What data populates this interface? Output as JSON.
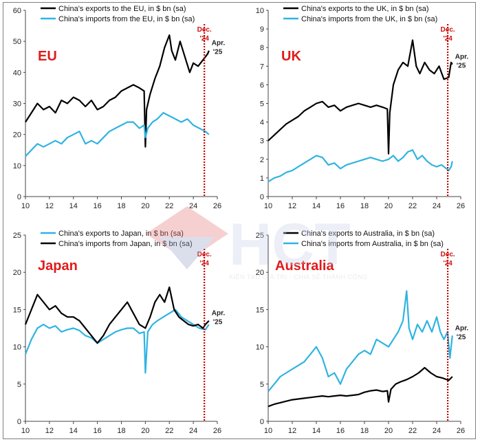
{
  "watermark": {
    "logo": "HCT",
    "slogan": "KIẾN TẠO GIÁ TRỊ - CHIA SẺ THÀNH CÔNG"
  },
  "colors": {
    "black_series": "#000000",
    "blue_series": "#2fb3e2",
    "region_label": "#e01b1b",
    "dec_line": "#c00000"
  },
  "chart_data": [
    {
      "type": "line",
      "region_label": "EU",
      "xlim": [
        10,
        26
      ],
      "ylim": [
        0,
        60
      ],
      "xticks": [
        "10",
        "12",
        "14",
        "16",
        "18",
        "20",
        "22",
        "24",
        "26"
      ],
      "yticks": [
        "0",
        "10",
        "20",
        "30",
        "40",
        "50",
        "60"
      ],
      "marker_dec": "Dec.",
      "marker_dec_year": "'24",
      "marker_apr": "Apr.",
      "marker_apr_year": "'25",
      "marker_x": 24.92,
      "series": [
        {
          "name": "China's exports to the EU, in $ bn (sa)",
          "color": "#000000",
          "x": [
            10,
            10.5,
            11,
            11.5,
            12,
            12.5,
            13,
            13.5,
            14,
            14.5,
            15,
            15.5,
            16,
            16.5,
            17,
            17.5,
            18,
            18.5,
            19,
            19.5,
            19.9,
            20.0,
            20.1,
            20.4,
            20.8,
            21.2,
            21.6,
            22.0,
            22.2,
            22.5,
            22.9,
            23.3,
            23.7,
            24.0,
            24.4,
            24.8,
            25.0,
            25.2,
            25.3
          ],
          "y": [
            24,
            27,
            30,
            28,
            29,
            27,
            31,
            30,
            32,
            31,
            29,
            31,
            28,
            29,
            31,
            32,
            34,
            35,
            36,
            35,
            34,
            16,
            28,
            33,
            38,
            42,
            48,
            52,
            47,
            44,
            50,
            45,
            40,
            43,
            42,
            44,
            45,
            46,
            47
          ]
        },
        {
          "name": "China's imports from the EU, in $ bn (sa)",
          "color": "#2fb3e2",
          "x": [
            10,
            10.5,
            11,
            11.5,
            12,
            12.5,
            13,
            13.5,
            14,
            14.5,
            15,
            15.5,
            16,
            16.5,
            17,
            17.5,
            18,
            18.5,
            19,
            19.5,
            19.9,
            20.0,
            20.2,
            20.6,
            21.0,
            21.5,
            22.0,
            22.5,
            23.0,
            23.5,
            24.0,
            24.5,
            25.0,
            25.3
          ],
          "y": [
            13,
            15,
            17,
            16,
            17,
            18,
            17,
            19,
            20,
            21,
            17,
            18,
            17,
            19,
            21,
            22,
            23,
            24,
            24,
            22,
            23,
            19,
            22,
            24,
            25,
            27,
            26,
            25,
            24,
            25,
            23,
            22,
            21,
            20
          ]
        }
      ]
    },
    {
      "type": "line",
      "region_label": "UK",
      "xlim": [
        10,
        26
      ],
      "ylim": [
        0,
        10
      ],
      "xticks": [
        "10",
        "12",
        "14",
        "16",
        "18",
        "20",
        "22",
        "24",
        "26"
      ],
      "yticks": [
        "0",
        "1",
        "2",
        "3",
        "4",
        "5",
        "6",
        "7",
        "8",
        "9",
        "10"
      ],
      "marker_dec": "Dec.",
      "marker_dec_year": "'24",
      "marker_apr": "Apr.",
      "marker_apr_year": "'25",
      "marker_x": 24.92,
      "series": [
        {
          "name": "China's exports to the UK, in $ bn (sa)",
          "color": "#000000",
          "x": [
            10,
            10.5,
            11,
            11.5,
            12,
            12.5,
            13,
            13.5,
            14,
            14.5,
            15,
            15.5,
            16,
            16.5,
            17,
            17.5,
            18,
            18.5,
            19,
            19.5,
            19.9,
            20.0,
            20.1,
            20.4,
            20.8,
            21.2,
            21.6,
            22.0,
            22.3,
            22.6,
            23.0,
            23.4,
            23.8,
            24.2,
            24.6,
            25.0,
            25.2,
            25.3
          ],
          "y": [
            3.0,
            3.3,
            3.6,
            3.9,
            4.1,
            4.3,
            4.6,
            4.8,
            5.0,
            5.1,
            4.8,
            4.9,
            4.6,
            4.8,
            4.9,
            5.0,
            4.9,
            4.8,
            4.9,
            4.8,
            4.7,
            2.3,
            4.5,
            6.0,
            6.8,
            7.2,
            7.0,
            8.4,
            7.0,
            6.6,
            7.2,
            6.8,
            6.6,
            7.0,
            6.3,
            6.4,
            7.2,
            7.1
          ]
        },
        {
          "name": "China's imports from the UK, in $ bn (sa)",
          "color": "#2fb3e2",
          "x": [
            10,
            10.5,
            11,
            11.5,
            12,
            12.5,
            13,
            13.5,
            14,
            14.5,
            15,
            15.5,
            16,
            16.5,
            17,
            17.5,
            18,
            18.5,
            19,
            19.5,
            20.0,
            20.4,
            20.8,
            21.2,
            21.6,
            22.0,
            22.4,
            22.8,
            23.2,
            23.6,
            24.0,
            24.4,
            24.8,
            25.0,
            25.2,
            25.3
          ],
          "y": [
            0.8,
            1.0,
            1.1,
            1.3,
            1.4,
            1.6,
            1.8,
            2.0,
            2.2,
            2.1,
            1.7,
            1.8,
            1.5,
            1.7,
            1.8,
            1.9,
            2.0,
            2.1,
            2.0,
            1.9,
            2.0,
            2.2,
            1.9,
            2.1,
            2.4,
            2.5,
            2.0,
            2.2,
            1.9,
            1.7,
            1.6,
            1.7,
            1.5,
            1.4,
            1.6,
            1.9
          ]
        }
      ]
    },
    {
      "type": "line",
      "region_label": "Japan",
      "xlim": [
        10,
        26
      ],
      "ylim": [
        0,
        25
      ],
      "xticks": [
        "10",
        "12",
        "14",
        "16",
        "18",
        "20",
        "22",
        "24",
        "26"
      ],
      "yticks": [
        "0",
        "5",
        "10",
        "15",
        "20",
        "25"
      ],
      "marker_dec": "Dec.",
      "marker_dec_year": "'24",
      "marker_apr": "Apr.",
      "marker_apr_year": "'25",
      "marker_x": 24.92,
      "series": [
        {
          "name": "China's exports to Japan, in $ bn (sa)",
          "color": "#2fb3e2",
          "x": [
            10,
            10.5,
            11,
            11.5,
            12,
            12.5,
            13,
            13.5,
            14,
            14.5,
            15,
            15.5,
            16,
            16.5,
            17,
            17.5,
            18,
            18.5,
            19,
            19.5,
            19.9,
            20.0,
            20.2,
            20.6,
            21.0,
            21.5,
            22.0,
            22.5,
            23.0,
            23.5,
            24.0,
            24.5,
            25.0,
            25.3
          ],
          "y": [
            9,
            11,
            12.5,
            13,
            12.5,
            12.8,
            12,
            12.3,
            12.5,
            12.2,
            11.5,
            11.2,
            10.5,
            11,
            11.5,
            12,
            12.3,
            12.5,
            12.5,
            11.8,
            12,
            6.5,
            12,
            13,
            13.5,
            14,
            14.5,
            15,
            14,
            13.5,
            13,
            12.5,
            12.3,
            13
          ]
        },
        {
          "name": "China's imports from Japan, in $ bn (sa)",
          "color": "#000000",
          "x": [
            10,
            10.5,
            11,
            11.5,
            12,
            12.5,
            13,
            13.5,
            14,
            14.5,
            15,
            15.5,
            16,
            16.5,
            17,
            17.5,
            18,
            18.5,
            19,
            19.5,
            20.0,
            20.4,
            20.8,
            21.2,
            21.6,
            22.0,
            22.4,
            22.8,
            23.2,
            23.6,
            24.0,
            24.4,
            24.8,
            25.0,
            25.3
          ],
          "y": [
            13,
            15,
            17,
            16,
            15,
            15.5,
            14.5,
            14,
            14,
            13.5,
            12.5,
            11.5,
            10.5,
            11.5,
            13,
            14,
            15,
            16,
            14.5,
            13,
            12.5,
            14,
            16,
            17,
            16,
            18,
            15,
            14,
            13.5,
            13,
            12.8,
            13,
            12.5,
            13,
            13.5
          ]
        }
      ]
    },
    {
      "type": "line",
      "region_label": "Australia",
      "xlim": [
        10,
        26
      ],
      "ylim": [
        0,
        25
      ],
      "xticks": [
        "10",
        "12",
        "14",
        "16",
        "18",
        "20",
        "22",
        "24",
        "26"
      ],
      "yticks": [
        "0",
        "5",
        "10",
        "15",
        "20",
        "25"
      ],
      "marker_dec": "Dec.",
      "marker_dec_year": "'24",
      "marker_apr": "Apr.",
      "marker_apr_year": "'25",
      "marker_x": 24.92,
      "series": [
        {
          "name": "China's exports to Australia, in $ bn (sa)",
          "color": "#000000",
          "x": [
            10,
            10.5,
            11,
            11.5,
            12,
            12.5,
            13,
            13.5,
            14,
            14.5,
            15,
            15.5,
            16,
            16.5,
            17,
            17.5,
            18,
            18.5,
            19,
            19.5,
            19.9,
            20.0,
            20.2,
            20.6,
            21.0,
            21.5,
            22.0,
            22.5,
            23.0,
            23.5,
            24.0,
            24.5,
            25.0,
            25.3
          ],
          "y": [
            2,
            2.3,
            2.5,
            2.7,
            2.9,
            3.0,
            3.1,
            3.2,
            3.3,
            3.4,
            3.3,
            3.4,
            3.5,
            3.4,
            3.5,
            3.6,
            3.9,
            4.1,
            4.2,
            4.0,
            4.1,
            2.6,
            4.3,
            5.0,
            5.3,
            5.6,
            6.0,
            6.5,
            7.2,
            6.5,
            6.0,
            5.8,
            5.5,
            6.0
          ]
        },
        {
          "name": "China's imports from Australia, in $ bn (sa)",
          "color": "#2fb3e2",
          "x": [
            10,
            10.5,
            11,
            11.5,
            12,
            12.5,
            13,
            13.5,
            14,
            14.5,
            15,
            15.5,
            16,
            16.5,
            17,
            17.5,
            18,
            18.5,
            19,
            19.5,
            20.0,
            20.4,
            20.8,
            21.2,
            21.5,
            21.7,
            22.0,
            22.4,
            22.8,
            23.2,
            23.6,
            24.0,
            24.3,
            24.6,
            24.9,
            25.1,
            25.3
          ],
          "y": [
            4,
            5,
            6,
            6.5,
            7,
            7.5,
            8,
            9,
            10,
            8.5,
            6,
            6.5,
            5,
            7,
            8,
            9,
            9.5,
            9,
            11,
            10.5,
            10,
            11,
            12,
            13.5,
            17.5,
            12.5,
            11,
            13,
            12,
            13.5,
            12,
            14,
            12,
            11,
            12,
            8.5,
            11.5
          ]
        }
      ]
    }
  ]
}
